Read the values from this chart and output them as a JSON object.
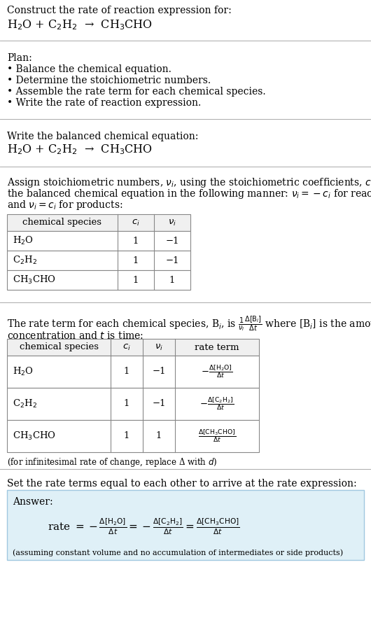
{
  "title_line1": "Construct the rate of reaction expression for:",
  "reaction_header": "H$_2$O + C$_2$H$_2$  →  CH$_3$CHO",
  "plan_title": "Plan:",
  "plan_items": [
    "• Balance the chemical equation.",
    "• Determine the stoichiometric numbers.",
    "• Assemble the rate term for each chemical species.",
    "• Write the rate of reaction expression."
  ],
  "balanced_label": "Write the balanced chemical equation:",
  "balanced_eq": "H$_2$O + C$_2$H$_2$  →  CH$_3$CHO",
  "stoich_intro_lines": [
    "Assign stoichiometric numbers, $\\nu_i$, using the stoichiometric coefficients, $c_i$, from",
    "the balanced chemical equation in the following manner: $\\nu_i = -c_i$ for reactants",
    "and $\\nu_i = c_i$ for products:"
  ],
  "table1_headers": [
    "chemical species",
    "$c_i$",
    "$\\nu_i$"
  ],
  "table1_rows": [
    [
      "H$_2$O",
      "1",
      "−1"
    ],
    [
      "C$_2$H$_2$",
      "1",
      "−1"
    ],
    [
      "CH$_3$CHO",
      "1",
      "1"
    ]
  ],
  "rate_term_intro1": "The rate term for each chemical species, B$_i$, is $\\frac{1}{\\nu_i}\\frac{\\Delta[\\mathrm{B}_i]}{\\Delta t}$ where [B$_i$] is the amount",
  "rate_term_intro2": "concentration and $t$ is time:",
  "table2_headers": [
    "chemical species",
    "$c_i$",
    "$\\nu_i$",
    "rate term"
  ],
  "table2_rows": [
    [
      "H$_2$O",
      "1",
      "−1",
      "$-\\frac{\\Delta[\\mathrm{H_2O}]}{\\Delta t}$"
    ],
    [
      "C$_2$H$_2$",
      "1",
      "−1",
      "$-\\frac{\\Delta[\\mathrm{C_2H_2}]}{\\Delta t}$"
    ],
    [
      "CH$_3$CHO",
      "1",
      "1",
      "$\\frac{\\Delta[\\mathrm{CH_3CHO}]}{\\Delta t}$"
    ]
  ],
  "infinitesimal_note": "(for infinitesimal rate of change, replace Δ with $d$)",
  "set_equal_label": "Set the rate terms equal to each other to arrive at the rate expression:",
  "answer_label": "Answer:",
  "answer_box_color": "#dff0f7",
  "answer_box_border": "#a0c8e0",
  "answer_rate_expr": "rate $= -\\frac{\\Delta[\\mathrm{H_2O}]}{\\Delta t} = -\\frac{\\Delta[\\mathrm{C_2H_2}]}{\\Delta t} = \\frac{\\Delta[\\mathrm{CH_3CHO}]}{\\Delta t}$",
  "answer_note": "(assuming constant volume and no accumulation of intermediates or side products)",
  "bg_color": "#ffffff",
  "text_color": "#000000",
  "sep_color": "#aaaaaa",
  "table_line_color": "#888888",
  "font_size": 10.0
}
